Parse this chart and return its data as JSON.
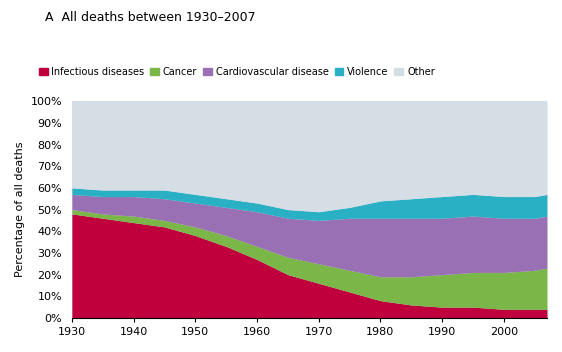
{
  "title": "A  All deaths between 1930–2007",
  "ylabel": "Percentage of all deaths",
  "years": [
    1930,
    1935,
    1940,
    1945,
    1950,
    1955,
    1960,
    1965,
    1970,
    1975,
    1980,
    1985,
    1990,
    1995,
    2000,
    2005,
    2007
  ],
  "infectious": [
    48,
    46,
    44,
    42,
    38,
    33,
    27,
    20,
    16,
    12,
    8,
    6,
    5,
    5,
    4,
    4,
    4
  ],
  "cancer": [
    2,
    2,
    3,
    3,
    4,
    5,
    6,
    8,
    9,
    10,
    11,
    13,
    15,
    16,
    17,
    18,
    19
  ],
  "cardio": [
    7,
    8,
    9,
    10,
    11,
    13,
    16,
    18,
    20,
    24,
    27,
    27,
    26,
    26,
    25,
    24,
    24
  ],
  "violence": [
    3,
    3,
    3,
    4,
    4,
    4,
    4,
    4,
    4,
    5,
    8,
    9,
    10,
    10,
    10,
    10,
    10
  ],
  "other": [
    40,
    41,
    41,
    41,
    43,
    45,
    47,
    50,
    51,
    49,
    46,
    45,
    44,
    43,
    44,
    44,
    43
  ],
  "colors": {
    "infectious": "#c0003c",
    "cancer": "#7ab648",
    "cardio": "#9970b3",
    "violence": "#2ab0c5",
    "other": "#d5dde5"
  },
  "legend_labels": [
    "Infectious diseases",
    "Cancer",
    "Cardiovascular disease",
    "Violence",
    "Other"
  ],
  "ylim": [
    0,
    100
  ],
  "xlim": [
    1930,
    2007
  ],
  "background_color": "#ffffff",
  "plot_bg_color": "#d5dde5",
  "title_fontsize": 9,
  "label_fontsize": 8,
  "tick_fontsize": 8
}
